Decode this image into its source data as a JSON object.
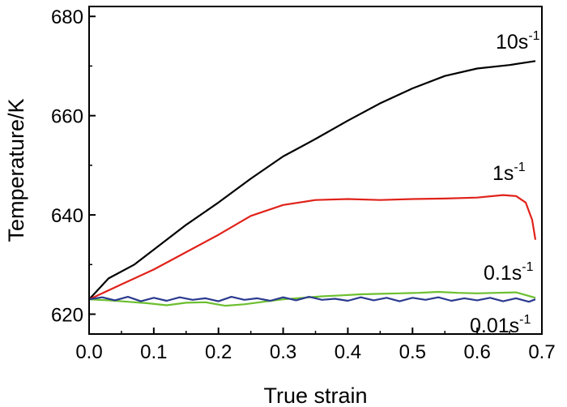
{
  "chart_data": {
    "type": "line",
    "title": "",
    "xlabel": "True strain",
    "ylabel": "Temperature/K",
    "xlim": [
      0.0,
      0.7
    ],
    "ylim": [
      616,
      682
    ],
    "xticks": [
      0.0,
      0.1,
      0.2,
      0.3,
      0.4,
      0.5,
      0.6,
      0.7
    ],
    "xtick_labels": [
      "0.0",
      "0.1",
      "0.2",
      "0.3",
      "0.4",
      "0.5",
      "0.6",
      "0.7"
    ],
    "yticks": [
      620,
      640,
      660,
      680
    ],
    "ytick_labels": [
      "620",
      "640",
      "660",
      "680"
    ],
    "grid": false,
    "legend": "inline labels",
    "series": [
      {
        "name": "10s-1",
        "label_base": "10s",
        "label_sup": "-1",
        "color": "#000000",
        "x": [
          0.0,
          0.03,
          0.07,
          0.1,
          0.15,
          0.2,
          0.25,
          0.3,
          0.35,
          0.4,
          0.45,
          0.5,
          0.55,
          0.6,
          0.65,
          0.69
        ],
        "y": [
          623,
          627.2,
          630,
          633,
          638,
          642.5,
          647.3,
          651.8,
          655.3,
          659,
          662.5,
          665.5,
          668,
          669.5,
          670.2,
          671
        ]
      },
      {
        "name": "1s-1",
        "label_base": "1s",
        "label_sup": "-1",
        "color": "#e0221a",
        "x": [
          0.0,
          0.05,
          0.1,
          0.15,
          0.2,
          0.25,
          0.3,
          0.35,
          0.4,
          0.45,
          0.5,
          0.55,
          0.6,
          0.64,
          0.66,
          0.675,
          0.685,
          0.69
        ],
        "y": [
          623,
          626,
          629,
          632.5,
          636,
          639.8,
          642,
          643,
          643.2,
          643,
          643.2,
          643.3,
          643.5,
          644,
          643.8,
          642.5,
          639,
          635
        ]
      },
      {
        "name": "0.1s-1",
        "label_base": "0.1s",
        "label_sup": "-1",
        "color": "#6cbf2f",
        "x": [
          0.0,
          0.03,
          0.06,
          0.09,
          0.12,
          0.15,
          0.18,
          0.21,
          0.24,
          0.27,
          0.3,
          0.33,
          0.36,
          0.39,
          0.42,
          0.45,
          0.48,
          0.51,
          0.54,
          0.57,
          0.6,
          0.63,
          0.66,
          0.69
        ],
        "y": [
          623,
          622.8,
          622.5,
          622.2,
          621.8,
          622.3,
          622.4,
          621.7,
          622,
          622.5,
          623,
          623.3,
          623.6,
          623.8,
          624,
          624.1,
          624.2,
          624.3,
          624.5,
          624.3,
          624.2,
          624.3,
          624.4,
          623.3
        ]
      },
      {
        "name": "0.01s-1",
        "label_base": "0.01s",
        "label_sup": "-1",
        "color": "#2b3a8f",
        "x": [
          0.0,
          0.02,
          0.04,
          0.06,
          0.08,
          0.1,
          0.12,
          0.14,
          0.16,
          0.18,
          0.2,
          0.22,
          0.24,
          0.26,
          0.28,
          0.3,
          0.32,
          0.34,
          0.36,
          0.38,
          0.4,
          0.42,
          0.44,
          0.46,
          0.48,
          0.5,
          0.52,
          0.54,
          0.56,
          0.58,
          0.6,
          0.62,
          0.64,
          0.66,
          0.68,
          0.69
        ],
        "y": [
          623,
          623.4,
          622.8,
          623.5,
          622.6,
          623.3,
          622.7,
          623.4,
          622.9,
          623.2,
          622.6,
          623.5,
          622.9,
          623.2,
          622.7,
          623.4,
          622.8,
          623.5,
          622.9,
          623.1,
          622.7,
          623.4,
          622.8,
          623.3,
          622.6,
          623.3,
          622.9,
          623.4,
          622.7,
          623.2,
          622.8,
          623.3,
          622.6,
          623.2,
          622.5,
          623
        ]
      }
    ]
  }
}
